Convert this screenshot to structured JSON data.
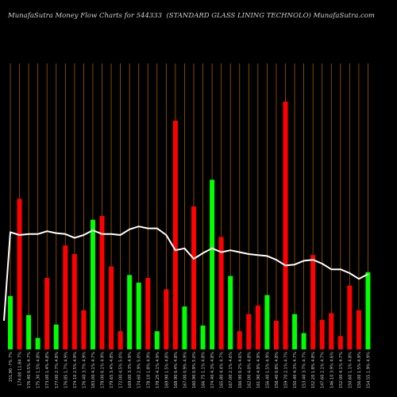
{
  "header": {
    "left": "MunafaSutra  Money Flow  Charts for 544333",
    "right": "(STANDARD GLASS LINING TECHNOLO) MunafaSutra.com"
  },
  "chart_data": {
    "type": "bar",
    "title": "MunafaSutra Money Flow Charts for 544333",
    "colors": {
      "up": "#00ff00",
      "down": "#ff0000",
      "line": "#ffffff",
      "grid": "#a05a00",
      "background": "#000000"
    },
    "x_labels": [
      "151.90 -7% 7%",
      "174.00 11.84 7%",
      "176.40 0.5% 4.7%",
      "175.30 1.5% 4.8%",
      "173.00 1.4% 4.8%",
      "177.00 2.7% 4.8%",
      "176.85 1.7% 4.9%",
      "174.10 2.5% 4.9%",
      "176.40 3.7% 4.9%",
      "183.00 4.1% 4.7%",
      "178.00 0.1% 4.9%",
      "179.65 3.4% 4.8%",
      "172.00 4.5% 5.0%",
      "169.00 3.3% 4.9%",
      "174.60 2.9% 5.0%",
      "178.10 1.8% 4.9%",
      "178.25 4.1% 4.9%",
      "169.90 1.5% 4.8%",
      "168.90 0.4% 4.8%",
      "167.00 0.9% 4.9%",
      "160.90 0.9% 5.0%",
      "166.75 1.1% 4.8%",
      "174.40 4.3% 4.8%",
      "165.80 4.4% 4.7%",
      "167.00 2.1% 4.6%",
      "166.90 0.2% 4.6%",
      "162.00 4.0% 4.8%",
      "161.90 4.9% 4.9%",
      "156.40 1.5% 4.9%",
      "158.40 0.8% 4.8%",
      "159.70 2.1% 4.7%",
      "150.40 4.3% 4.7%",
      "153.40 3.7% 4.7%",
      "152.20 1.8% 4.8%",
      "147.60 2.1% 4.7%",
      "146.10 3.9% 4.6%",
      "152.00 4.1% 4.7%",
      "150.60 1.1% 4.8%",
      "156.00 1.5% 4.9%",
      "154.55 1.9% 4.9%"
    ],
    "bars": [
      {
        "value": 56,
        "dir": "up"
      },
      {
        "value": 158,
        "dir": "down"
      },
      {
        "value": 36,
        "dir": "up"
      },
      {
        "value": 12,
        "dir": "up"
      },
      {
        "value": 75,
        "dir": "down"
      },
      {
        "value": 26,
        "dir": "up"
      },
      {
        "value": 109,
        "dir": "down"
      },
      {
        "value": 100,
        "dir": "down"
      },
      {
        "value": 41,
        "dir": "down"
      },
      {
        "value": 136,
        "dir": "up"
      },
      {
        "value": 140,
        "dir": "down"
      },
      {
        "value": 87,
        "dir": "down"
      },
      {
        "value": 19,
        "dir": "down"
      },
      {
        "value": 78,
        "dir": "up"
      },
      {
        "value": 70,
        "dir": "up"
      },
      {
        "value": 75,
        "dir": "down"
      },
      {
        "value": 19,
        "dir": "up"
      },
      {
        "value": 63,
        "dir": "down"
      },
      {
        "value": 240,
        "dir": "down"
      },
      {
        "value": 45,
        "dir": "up"
      },
      {
        "value": 150,
        "dir": "down"
      },
      {
        "value": 25,
        "dir": "up"
      },
      {
        "value": 178,
        "dir": "up"
      },
      {
        "value": 118,
        "dir": "down"
      },
      {
        "value": 77,
        "dir": "up"
      },
      {
        "value": 19,
        "dir": "down"
      },
      {
        "value": 37,
        "dir": "down"
      },
      {
        "value": 46,
        "dir": "down"
      },
      {
        "value": 57,
        "dir": "up"
      },
      {
        "value": 30,
        "dir": "down"
      },
      {
        "value": 260,
        "dir": "down"
      },
      {
        "value": 37,
        "dir": "up"
      },
      {
        "value": 17,
        "dir": "up"
      },
      {
        "value": 99,
        "dir": "down"
      },
      {
        "value": 31,
        "dir": "down"
      },
      {
        "value": 38,
        "dir": "down"
      },
      {
        "value": 14,
        "dir": "down"
      },
      {
        "value": 67,
        "dir": "down"
      },
      {
        "value": 41,
        "dir": "down"
      },
      {
        "value": 81,
        "dir": "up"
      }
    ],
    "line": [
      {
        "x": 0,
        "y": 123
      },
      {
        "x": 1,
        "y": 120
      },
      {
        "x": 2,
        "y": 121
      },
      {
        "x": 3,
        "y": 121
      },
      {
        "x": 4,
        "y": 124
      },
      {
        "x": 5,
        "y": 122
      },
      {
        "x": 6,
        "y": 121
      },
      {
        "x": 7,
        "y": 117
      },
      {
        "x": 8,
        "y": 120
      },
      {
        "x": 9,
        "y": 125
      },
      {
        "x": 10,
        "y": 121
      },
      {
        "x": 11,
        "y": 121
      },
      {
        "x": 12,
        "y": 120
      },
      {
        "x": 13,
        "y": 126
      },
      {
        "x": 14,
        "y": 129
      },
      {
        "x": 15,
        "y": 127
      },
      {
        "x": 16,
        "y": 127
      },
      {
        "x": 17,
        "y": 120
      },
      {
        "x": 18,
        "y": 104
      },
      {
        "x": 19,
        "y": 106
      },
      {
        "x": 20,
        "y": 95
      },
      {
        "x": 21,
        "y": 101
      },
      {
        "x": 22,
        "y": 106
      },
      {
        "x": 23,
        "y": 102
      },
      {
        "x": 24,
        "y": 104
      },
      {
        "x": 25,
        "y": 102
      },
      {
        "x": 26,
        "y": 100
      },
      {
        "x": 27,
        "y": 99
      },
      {
        "x": 28,
        "y": 98
      },
      {
        "x": 29,
        "y": 94
      },
      {
        "x": 30,
        "y": 88
      },
      {
        "x": 31,
        "y": 89
      },
      {
        "x": 32,
        "y": 93
      },
      {
        "x": 33,
        "y": 94
      },
      {
        "x": 34,
        "y": 90
      },
      {
        "x": 35,
        "y": 84
      },
      {
        "x": 36,
        "y": 84
      },
      {
        "x": 37,
        "y": 80
      },
      {
        "x": 38,
        "y": 74
      },
      {
        "x": 39,
        "y": 79
      }
    ],
    "ylim": [
      0,
      300
    ],
    "grid": true,
    "line_start_y": 30
  }
}
